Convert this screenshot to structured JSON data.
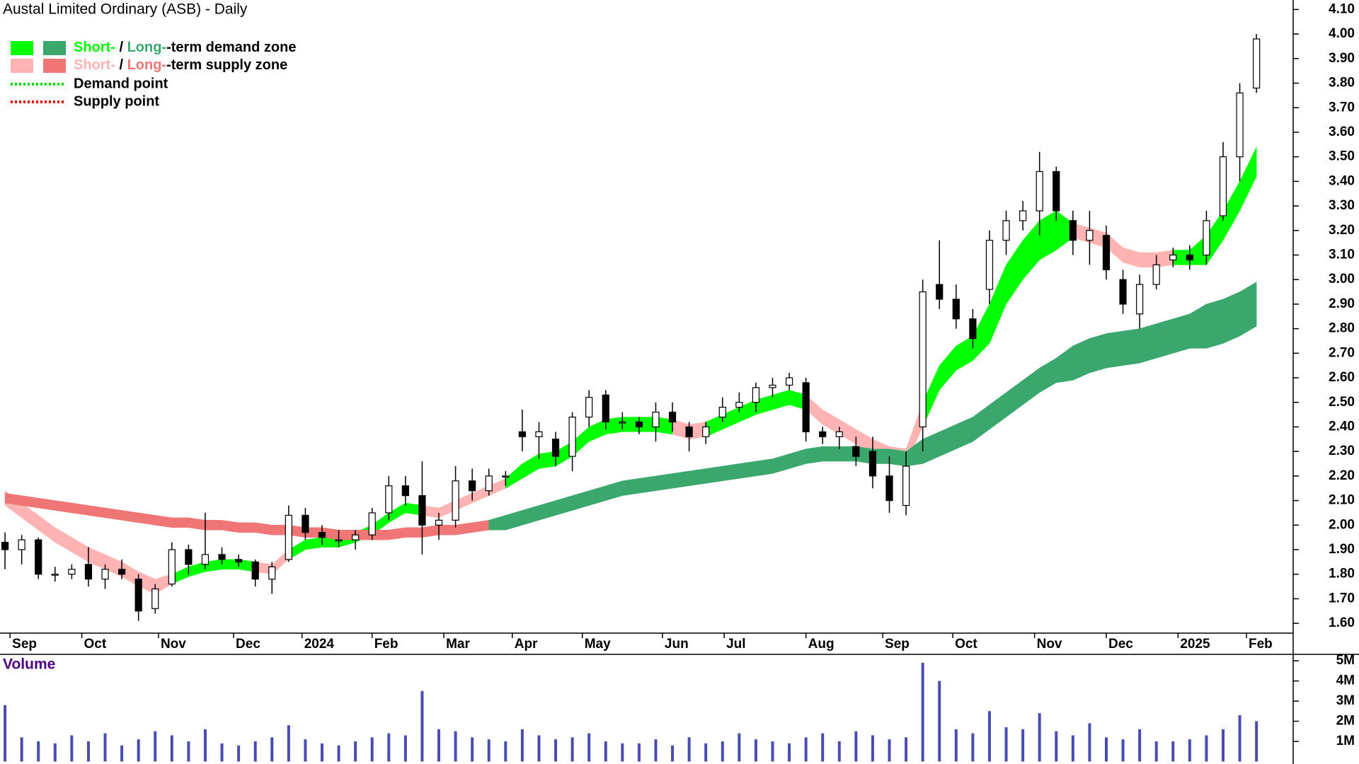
{
  "chart_data": {
    "type": "candlestick",
    "title": "Austal Limited Ordinary (ASB) - Daily",
    "legend": {
      "corner": "top-left",
      "demand_zone": {
        "parts": [
          "Short-",
          " / ",
          "Long-",
          "-term demand zone"
        ],
        "colors": [
          "#00ff00",
          "#3aa76d"
        ]
      },
      "supply_zone": {
        "parts": [
          "Short-",
          " / ",
          "Long-",
          "-term supply zone"
        ],
        "colors": [
          "#ffb3b3",
          "#f07575"
        ]
      },
      "demand_point": {
        "label": "Demand point",
        "color": "#00e000"
      },
      "supply_point": {
        "label": "Supply point",
        "color": "#e00000"
      }
    },
    "xticks": [
      {
        "value": 0.3,
        "label": "Sep"
      },
      {
        "value": 4.6,
        "label": "Oct"
      },
      {
        "value": 9.2,
        "label": "Nov"
      },
      {
        "value": 13.7,
        "label": "Dec"
      },
      {
        "value": 17.8,
        "label": "2024"
      },
      {
        "value": 22,
        "label": "Feb"
      },
      {
        "value": 26.3,
        "label": "Mar"
      },
      {
        "value": 30.4,
        "label": "Apr"
      },
      {
        "value": 34.6,
        "label": "May"
      },
      {
        "value": 39.4,
        "label": "Jun"
      },
      {
        "value": 43.1,
        "label": "Jul"
      },
      {
        "value": 48,
        "label": "Aug"
      },
      {
        "value": 52.6,
        "label": "Sep"
      },
      {
        "value": 56.8,
        "label": "Oct"
      },
      {
        "value": 61.7,
        "label": "Nov"
      },
      {
        "value": 66,
        "label": "Dec"
      },
      {
        "value": 70.3,
        "label": "2025"
      },
      {
        "value": 74.4,
        "label": "Feb"
      }
    ],
    "xlim": [
      -0.3,
      77.2
    ],
    "ylim": [
      1.56,
      4.13
    ],
    "yticks": [
      {
        "value": 1.6,
        "label": "1.60"
      },
      {
        "value": 1.7,
        "label": "1.70"
      },
      {
        "value": 1.8,
        "label": "1.80"
      },
      {
        "value": 1.9,
        "label": "1.90"
      },
      {
        "value": 2.0,
        "label": "2.00"
      },
      {
        "value": 2.1,
        "label": "2.10"
      },
      {
        "value": 2.2,
        "label": "2.20"
      },
      {
        "value": 2.3,
        "label": "2.30"
      },
      {
        "value": 2.4,
        "label": "2.40"
      },
      {
        "value": 2.5,
        "label": "2.50"
      },
      {
        "value": 2.6,
        "label": "2.60"
      },
      {
        "value": 2.7,
        "label": "2.70"
      },
      {
        "value": 2.8,
        "label": "2.80"
      },
      {
        "value": 2.9,
        "label": "2.90"
      },
      {
        "value": 3.0,
        "label": "3.00"
      },
      {
        "value": 3.1,
        "label": "3.10"
      },
      {
        "value": 3.2,
        "label": "3.20"
      },
      {
        "value": 3.3,
        "label": "3.30"
      },
      {
        "value": 3.4,
        "label": "3.40"
      },
      {
        "value": 3.5,
        "label": "3.50"
      },
      {
        "value": 3.6,
        "label": "3.60"
      },
      {
        "value": 3.7,
        "label": "3.70"
      },
      {
        "value": 3.8,
        "label": "3.80"
      },
      {
        "value": 3.9,
        "label": "3.90"
      },
      {
        "value": 4.0,
        "label": "4.00"
      },
      {
        "value": 4.1,
        "label": "4.10"
      }
    ],
    "candles": {
      "up_color": "#ffffff",
      "down_color": "#000000",
      "open": [
        1.93,
        1.9,
        1.94,
        1.8,
        1.8,
        1.84,
        1.78,
        1.82,
        1.78,
        1.66,
        1.76,
        1.9,
        1.84,
        1.88,
        1.86,
        1.85,
        1.78,
        1.86,
        2.04,
        1.97,
        1.94,
        1.94,
        1.96,
        2.05,
        2.16,
        2.12,
        2.0,
        2.02,
        2.18,
        2.14,
        2.2,
        2.38,
        2.36,
        2.35,
        2.28,
        2.44,
        2.53,
        2.42,
        2.42,
        2.4,
        2.46,
        2.4,
        2.36,
        2.44,
        2.48,
        2.5,
        2.56,
        2.57,
        2.58,
        2.38,
        2.36,
        2.32,
        2.3,
        2.2,
        2.08,
        2.4,
        2.98,
        2.92,
        2.84,
        2.96,
        3.16,
        3.24,
        3.28,
        3.44,
        3.24,
        3.16,
        3.18,
        3.0,
        2.86,
        2.98,
        3.08,
        3.1,
        3.1,
        3.26,
        3.5,
        3.78
      ],
      "high": [
        1.97,
        1.96,
        1.95,
        1.83,
        1.84,
        1.91,
        1.84,
        1.86,
        1.8,
        1.76,
        1.93,
        1.92,
        2.05,
        1.91,
        1.88,
        1.86,
        1.85,
        2.08,
        2.07,
        2.0,
        1.98,
        1.98,
        2.07,
        2.2,
        2.2,
        2.26,
        2.05,
        2.24,
        2.23,
        2.23,
        2.22,
        2.47,
        2.42,
        2.38,
        2.46,
        2.55,
        2.55,
        2.46,
        2.44,
        2.5,
        2.5,
        2.42,
        2.42,
        2.52,
        2.54,
        2.58,
        2.6,
        2.62,
        2.6,
        2.4,
        2.4,
        2.36,
        2.36,
        2.28,
        2.3,
        3.0,
        3.16,
        2.98,
        2.88,
        3.2,
        3.28,
        3.32,
        3.52,
        3.46,
        3.28,
        3.28,
        3.22,
        3.04,
        3.02,
        3.1,
        3.13,
        3.14,
        3.28,
        3.56,
        3.8,
        4.0
      ],
      "low": [
        1.82,
        1.84,
        1.78,
        1.77,
        1.78,
        1.75,
        1.74,
        1.78,
        1.61,
        1.64,
        1.75,
        1.8,
        1.82,
        1.84,
        1.83,
        1.75,
        1.72,
        1.85,
        1.94,
        1.92,
        1.91,
        1.9,
        1.94,
        2.02,
        2.08,
        1.88,
        1.94,
        1.99,
        2.1,
        2.12,
        2.16,
        2.3,
        2.27,
        2.24,
        2.22,
        2.4,
        2.39,
        2.39,
        2.37,
        2.34,
        2.38,
        2.3,
        2.33,
        2.42,
        2.46,
        2.46,
        2.52,
        2.55,
        2.34,
        2.33,
        2.31,
        2.24,
        2.15,
        2.05,
        2.04,
        2.3,
        2.88,
        2.8,
        2.72,
        2.9,
        3.1,
        3.2,
        3.18,
        3.24,
        3.1,
        3.06,
        3.0,
        2.86,
        2.8,
        2.96,
        3.05,
        3.04,
        3.06,
        3.24,
        3.4,
        3.76
      ],
      "close": [
        1.9,
        1.94,
        1.8,
        1.8,
        1.82,
        1.78,
        1.82,
        1.8,
        1.65,
        1.74,
        1.9,
        1.84,
        1.88,
        1.86,
        1.85,
        1.78,
        1.83,
        2.04,
        1.97,
        1.95,
        1.94,
        1.96,
        2.05,
        2.16,
        2.12,
        2.0,
        2.02,
        2.18,
        2.14,
        2.2,
        2.2,
        2.36,
        2.38,
        2.28,
        2.44,
        2.52,
        2.42,
        2.42,
        2.4,
        2.46,
        2.42,
        2.36,
        2.4,
        2.48,
        2.5,
        2.56,
        2.57,
        2.6,
        2.38,
        2.36,
        2.38,
        2.28,
        2.2,
        2.1,
        2.24,
        2.95,
        2.92,
        2.84,
        2.76,
        3.16,
        3.24,
        3.28,
        3.44,
        3.28,
        3.16,
        3.2,
        3.04,
        2.9,
        2.98,
        3.06,
        3.1,
        3.08,
        3.24,
        3.5,
        3.76,
        3.98
      ]
    },
    "zones": [
      {
        "color": "#ffb3b3",
        "upper": [
          2.14,
          2.09,
          2.04,
          1.99,
          1.95,
          1.91,
          1.88,
          1.85,
          1.81,
          1.78,
          1.8,
          null,
          null,
          null,
          null,
          1.85,
          1.84,
          1.9,
          null,
          null,
          null,
          null,
          null,
          null,
          null,
          2.08,
          2.07,
          2.1,
          2.13,
          2.16,
          2.19,
          null,
          null,
          null,
          null,
          null,
          null,
          null,
          null,
          null,
          2.43,
          2.41,
          2.42,
          null,
          null,
          null,
          null,
          null,
          2.53,
          2.47,
          2.43,
          2.39,
          2.35,
          2.32,
          2.31,
          2.5,
          null,
          null,
          null,
          null,
          null,
          null,
          null,
          null,
          3.23,
          3.21,
          3.19,
          3.13,
          3.11,
          3.11,
          3.12,
          null,
          null,
          null,
          null,
          null
        ],
        "lower": [
          2.08,
          2.03,
          1.98,
          1.93,
          1.89,
          1.85,
          1.82,
          1.79,
          1.75,
          1.72,
          1.76,
          null,
          null,
          null,
          null,
          1.81,
          1.8,
          1.86,
          null,
          null,
          null,
          null,
          null,
          null,
          null,
          2.04,
          2.03,
          2.06,
          2.09,
          2.12,
          2.15,
          null,
          null,
          null,
          null,
          null,
          null,
          null,
          null,
          null,
          2.37,
          2.35,
          2.36,
          null,
          null,
          null,
          null,
          null,
          2.47,
          2.41,
          2.37,
          2.33,
          2.29,
          2.26,
          2.25,
          2.4,
          null,
          null,
          null,
          null,
          null,
          null,
          null,
          null,
          3.17,
          3.15,
          3.13,
          3.07,
          3.05,
          3.05,
          3.06,
          null,
          null,
          null,
          null,
          null
        ]
      },
      {
        "color": "#00ff00",
        "upper": [
          null,
          null,
          null,
          null,
          null,
          null,
          null,
          null,
          null,
          null,
          1.8,
          1.83,
          1.85,
          1.86,
          1.86,
          1.85,
          null,
          1.9,
          1.94,
          1.95,
          1.95,
          1.97,
          2.0,
          2.05,
          2.09,
          2.08,
          null,
          null,
          null,
          null,
          2.19,
          2.25,
          2.29,
          2.3,
          2.34,
          2.4,
          2.43,
          2.44,
          2.44,
          2.44,
          2.43,
          null,
          2.42,
          2.45,
          2.48,
          2.51,
          2.53,
          2.55,
          2.53,
          null,
          null,
          null,
          null,
          null,
          null,
          2.5,
          2.65,
          2.73,
          2.77,
          2.9,
          3.06,
          3.16,
          3.24,
          3.28,
          3.23,
          null,
          null,
          null,
          null,
          null,
          3.12,
          3.12,
          3.18,
          3.28,
          3.4,
          3.54
        ],
        "lower": [
          null,
          null,
          null,
          null,
          null,
          null,
          null,
          null,
          null,
          null,
          1.76,
          1.79,
          1.81,
          1.82,
          1.82,
          1.81,
          null,
          1.86,
          1.9,
          1.91,
          1.91,
          1.93,
          1.96,
          2.01,
          2.05,
          2.04,
          null,
          null,
          null,
          null,
          2.15,
          2.19,
          2.23,
          2.24,
          2.28,
          2.34,
          2.37,
          2.38,
          2.38,
          2.38,
          2.37,
          null,
          2.36,
          2.39,
          2.42,
          2.45,
          2.47,
          2.49,
          2.47,
          null,
          null,
          null,
          null,
          null,
          null,
          2.4,
          2.55,
          2.63,
          2.67,
          2.74,
          2.9,
          3.0,
          3.08,
          3.12,
          3.17,
          null,
          null,
          null,
          null,
          null,
          3.06,
          3.06,
          3.06,
          3.16,
          3.28,
          3.42
        ]
      },
      {
        "color": "#f07575",
        "upper": [
          2.13,
          2.12,
          2.11,
          2.1,
          2.09,
          2.08,
          2.07,
          2.06,
          2.05,
          2.04,
          2.03,
          2.03,
          2.02,
          2.02,
          2.01,
          2.01,
          2.0,
          2.0,
          1.99,
          1.99,
          1.98,
          1.98,
          1.98,
          1.98,
          1.99,
          1.99,
          2.0,
          2.0,
          2.01,
          2.02,
          null,
          null,
          null,
          null,
          null,
          null,
          null,
          null,
          null,
          null,
          null,
          null,
          null,
          null,
          null,
          null,
          null,
          null,
          null,
          null,
          null,
          null,
          null,
          null,
          null,
          null,
          null,
          null,
          null,
          null,
          null,
          null,
          null,
          null,
          null,
          null,
          null,
          null,
          null,
          null,
          null,
          null,
          null,
          null,
          null,
          null
        ],
        "lower": [
          2.09,
          2.08,
          2.07,
          2.06,
          2.05,
          2.04,
          2.03,
          2.02,
          2.01,
          2.0,
          1.99,
          1.99,
          1.98,
          1.98,
          1.97,
          1.97,
          1.96,
          1.96,
          1.95,
          1.95,
          1.94,
          1.94,
          1.94,
          1.94,
          1.95,
          1.95,
          1.96,
          1.96,
          1.97,
          1.98,
          null,
          null,
          null,
          null,
          null,
          null,
          null,
          null,
          null,
          null,
          null,
          null,
          null,
          null,
          null,
          null,
          null,
          null,
          null,
          null,
          null,
          null,
          null,
          null,
          null,
          null,
          null,
          null,
          null,
          null,
          null,
          null,
          null,
          null,
          null,
          null,
          null,
          null,
          null,
          null,
          null,
          null,
          null,
          null,
          null,
          null
        ]
      },
      {
        "color": "#3aa76d",
        "upper": [
          null,
          null,
          null,
          null,
          null,
          null,
          null,
          null,
          null,
          null,
          null,
          null,
          null,
          null,
          null,
          null,
          null,
          null,
          null,
          null,
          null,
          null,
          null,
          null,
          null,
          null,
          null,
          null,
          null,
          2.02,
          2.04,
          2.06,
          2.08,
          2.1,
          2.12,
          2.14,
          2.16,
          2.18,
          2.19,
          2.2,
          2.21,
          2.22,
          2.23,
          2.24,
          2.25,
          2.26,
          2.27,
          2.29,
          2.31,
          2.32,
          2.32,
          2.32,
          2.31,
          2.31,
          2.3,
          2.35,
          2.38,
          2.41,
          2.44,
          2.49,
          2.54,
          2.59,
          2.64,
          2.68,
          2.73,
          2.76,
          2.78,
          2.79,
          2.8,
          2.82,
          2.84,
          2.86,
          2.9,
          2.92,
          2.95,
          2.99
        ],
        "lower": [
          null,
          null,
          null,
          null,
          null,
          null,
          null,
          null,
          null,
          null,
          null,
          null,
          null,
          null,
          null,
          null,
          null,
          null,
          null,
          null,
          null,
          null,
          null,
          null,
          null,
          null,
          null,
          null,
          null,
          1.98,
          1.98,
          2.0,
          2.02,
          2.04,
          2.06,
          2.08,
          2.1,
          2.12,
          2.13,
          2.14,
          2.15,
          2.16,
          2.17,
          2.18,
          2.19,
          2.2,
          2.21,
          2.23,
          2.25,
          2.26,
          2.26,
          2.26,
          2.25,
          2.25,
          2.24,
          2.25,
          2.28,
          2.31,
          2.34,
          2.39,
          2.44,
          2.49,
          2.54,
          2.58,
          2.59,
          2.62,
          2.64,
          2.65,
          2.66,
          2.68,
          2.7,
          2.72,
          2.72,
          2.74,
          2.77,
          2.81
        ]
      }
    ],
    "volume": {
      "label": "Volume",
      "color": "#4b4bb4",
      "values": [
        2.8,
        1.2,
        1.0,
        0.9,
        1.3,
        1.0,
        1.4,
        0.8,
        1.1,
        1.5,
        1.3,
        1.0,
        1.6,
        0.9,
        0.8,
        1.0,
        1.2,
        1.8,
        1.1,
        0.9,
        0.8,
        1.0,
        1.2,
        1.4,
        1.3,
        3.5,
        1.6,
        1.5,
        1.2,
        1.1,
        1.0,
        1.6,
        1.3,
        1.1,
        1.2,
        1.4,
        1.0,
        0.9,
        0.9,
        1.1,
        0.8,
        1.2,
        0.9,
        1.0,
        1.4,
        1.1,
        1.0,
        0.9,
        1.2,
        1.4,
        1.0,
        1.5,
        1.3,
        1.1,
        1.2,
        4.9,
        4.0,
        1.6,
        1.4,
        2.5,
        1.7,
        1.6,
        2.4,
        1.5,
        1.3,
        1.9,
        1.2,
        1.1,
        1.6,
        1.0,
        1.0,
        1.1,
        1.3,
        1.6,
        2.3,
        2.0
      ],
      "ylim": [
        0,
        5.25
      ],
      "yticks": [
        {
          "value": 1,
          "label": "1M"
        },
        {
          "value": 2,
          "label": "2M"
        },
        {
          "value": 3,
          "label": "3M"
        },
        {
          "value": 4,
          "label": "4M"
        },
        {
          "value": 5,
          "label": "5M"
        }
      ]
    }
  }
}
